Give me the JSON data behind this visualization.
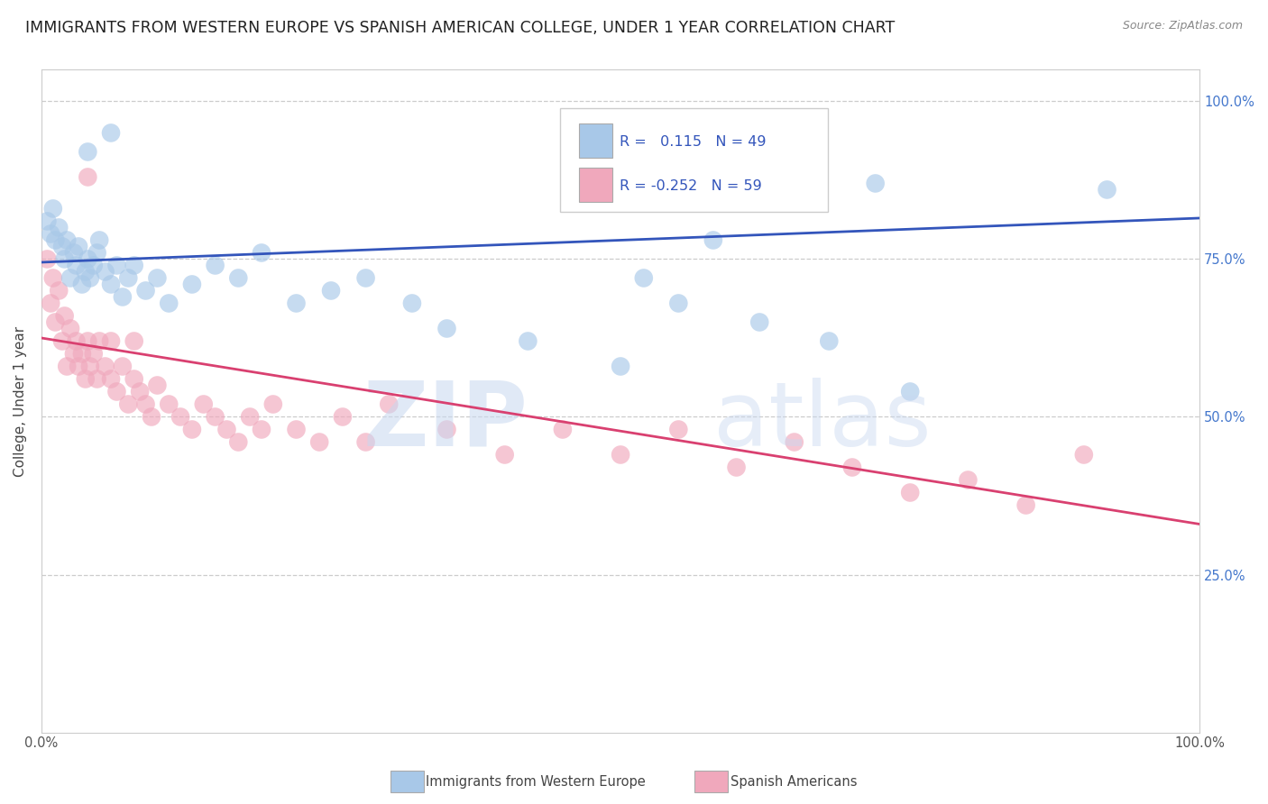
{
  "title": "IMMIGRANTS FROM WESTERN EUROPE VS SPANISH AMERICAN COLLEGE, UNDER 1 YEAR CORRELATION CHART",
  "source": "Source: ZipAtlas.com",
  "ylabel": "College, Under 1 year",
  "xlim": [
    0,
    1
  ],
  "ylim": [
    0,
    1.05
  ],
  "legend_label1": "Immigrants from Western Europe",
  "legend_label2": "Spanish Americans",
  "r1": 0.115,
  "n1": 49,
  "r2": -0.252,
  "n2": 59,
  "color1": "#a8c8e8",
  "color2": "#f0a8bc",
  "line_color1": "#3355bb",
  "line_color2": "#d94070",
  "title_fontsize": 12.5,
  "axis_fontsize": 11,
  "tick_fontsize": 10.5,
  "watermark_zip": "ZIP",
  "watermark_atlas": "atlas",
  "background_color": "#ffffff",
  "grid_color": "#cccccc",
  "blue_line_x0": 0.0,
  "blue_line_y0": 0.745,
  "blue_line_x1": 1.0,
  "blue_line_y1": 0.815,
  "pink_line_x0": 0.0,
  "pink_line_y0": 0.625,
  "pink_line_x1": 1.0,
  "pink_line_y1": 0.33,
  "blue_scatter_x": [
    0.005,
    0.008,
    0.01,
    0.012,
    0.015,
    0.018,
    0.02,
    0.022,
    0.025,
    0.028,
    0.03,
    0.032,
    0.035,
    0.038,
    0.04,
    0.042,
    0.045,
    0.048,
    0.05,
    0.055,
    0.06,
    0.065,
    0.07,
    0.075,
    0.08,
    0.09,
    0.1,
    0.11,
    0.13,
    0.15,
    0.17,
    0.19,
    0.22,
    0.25,
    0.28,
    0.32,
    0.35,
    0.42,
    0.5,
    0.52,
    0.55,
    0.58,
    0.62,
    0.68,
    0.72,
    0.75,
    0.92,
    0.04,
    0.06
  ],
  "blue_scatter_y": [
    0.81,
    0.79,
    0.83,
    0.78,
    0.8,
    0.77,
    0.75,
    0.78,
    0.72,
    0.76,
    0.74,
    0.77,
    0.71,
    0.73,
    0.75,
    0.72,
    0.74,
    0.76,
    0.78,
    0.73,
    0.71,
    0.74,
    0.69,
    0.72,
    0.74,
    0.7,
    0.72,
    0.68,
    0.71,
    0.74,
    0.72,
    0.76,
    0.68,
    0.7,
    0.72,
    0.68,
    0.64,
    0.62,
    0.58,
    0.72,
    0.68,
    0.78,
    0.65,
    0.62,
    0.87,
    0.54,
    0.86,
    0.92,
    0.95
  ],
  "pink_scatter_x": [
    0.005,
    0.008,
    0.01,
    0.012,
    0.015,
    0.018,
    0.02,
    0.022,
    0.025,
    0.028,
    0.03,
    0.032,
    0.035,
    0.038,
    0.04,
    0.042,
    0.045,
    0.048,
    0.05,
    0.055,
    0.06,
    0.065,
    0.07,
    0.075,
    0.08,
    0.085,
    0.09,
    0.095,
    0.1,
    0.11,
    0.12,
    0.13,
    0.14,
    0.15,
    0.16,
    0.17,
    0.18,
    0.19,
    0.2,
    0.22,
    0.24,
    0.26,
    0.28,
    0.3,
    0.35,
    0.4,
    0.45,
    0.5,
    0.55,
    0.6,
    0.65,
    0.7,
    0.75,
    0.8,
    0.85,
    0.9,
    0.04,
    0.06,
    0.08
  ],
  "pink_scatter_y": [
    0.75,
    0.68,
    0.72,
    0.65,
    0.7,
    0.62,
    0.66,
    0.58,
    0.64,
    0.6,
    0.62,
    0.58,
    0.6,
    0.56,
    0.62,
    0.58,
    0.6,
    0.56,
    0.62,
    0.58,
    0.56,
    0.54,
    0.58,
    0.52,
    0.56,
    0.54,
    0.52,
    0.5,
    0.55,
    0.52,
    0.5,
    0.48,
    0.52,
    0.5,
    0.48,
    0.46,
    0.5,
    0.48,
    0.52,
    0.48,
    0.46,
    0.5,
    0.46,
    0.52,
    0.48,
    0.44,
    0.48,
    0.44,
    0.48,
    0.42,
    0.46,
    0.42,
    0.38,
    0.4,
    0.36,
    0.44,
    0.88,
    0.62,
    0.62
  ]
}
